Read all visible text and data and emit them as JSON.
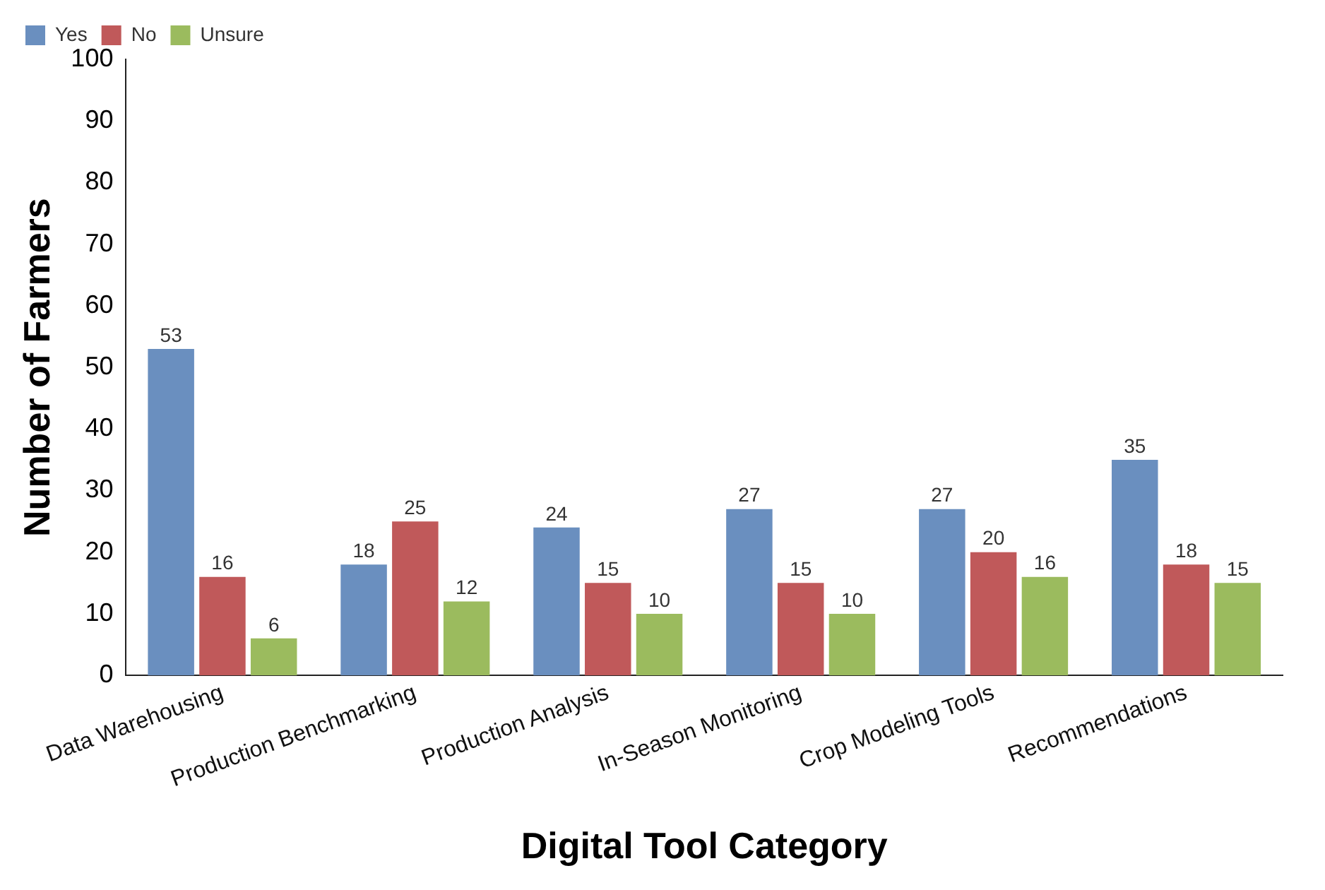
{
  "chart_data": {
    "type": "bar",
    "xlabel": "Digital Tool Category",
    "ylabel": "Number of Farmers",
    "categories": [
      "Data Warehousing",
      "Production Benchmarking",
      "Production Analysis",
      "In-Season Monitoring",
      "Crop Modeling Tools",
      "Recommendations"
    ],
    "series": [
      {
        "name": "Yes",
        "color": "#6a8fbf",
        "values": [
          53,
          18,
          24,
          27,
          27,
          35
        ]
      },
      {
        "name": "No",
        "color": "#c0595a",
        "values": [
          16,
          25,
          15,
          15,
          20,
          18
        ]
      },
      {
        "name": "Unsure",
        "color": "#9bbb5e",
        "values": [
          6,
          12,
          10,
          10,
          16,
          15
        ]
      }
    ],
    "ylim": [
      0,
      100
    ],
    "yticks": [
      0,
      10,
      20,
      30,
      40,
      50,
      60,
      70,
      80,
      90,
      100
    ],
    "grid": false,
    "legend": "top left",
    "data_labels": true
  }
}
